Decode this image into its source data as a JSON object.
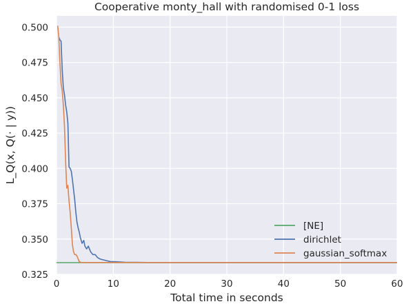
{
  "chart_data": {
    "type": "line",
    "title": "Cooperative monty_hall with randomised 0-1 loss",
    "xlabel": "Total time in seconds",
    "ylabel": "L_Q(x, Q(· | y))",
    "xlim": [
      0,
      60
    ],
    "ylim": [
      0.325,
      0.508
    ],
    "x_ticks": [
      0,
      10,
      20,
      30,
      40,
      50,
      60
    ],
    "y_ticks": [
      0.325,
      0.35,
      0.375,
      0.4,
      0.425,
      0.45,
      0.475,
      0.5
    ],
    "x_tick_labels": [
      "0",
      "10",
      "20",
      "30",
      "40",
      "50",
      "60"
    ],
    "y_tick_labels": [
      "0.325",
      "0.350",
      "0.375",
      "0.400",
      "0.425",
      "0.450",
      "0.475",
      "0.500"
    ],
    "grid": true,
    "legend_position": "bottom-right",
    "series": [
      {
        "name": "[NE]",
        "color": "#55a868",
        "x": [
          0,
          60
        ],
        "y": [
          0.3333,
          0.3333
        ]
      },
      {
        "name": "dirichlet",
        "color": "#4c72b0",
        "x": [
          0.4,
          0.6,
          0.8,
          1.0,
          1.2,
          1.4,
          1.6,
          1.8,
          2.0,
          2.2,
          2.4,
          2.6,
          2.8,
          3.0,
          3.2,
          3.4,
          3.6,
          3.8,
          4.0,
          4.2,
          4.5,
          4.8,
          5.0,
          5.3,
          5.6,
          6.0,
          6.4,
          6.8,
          7.2,
          7.6,
          8.0,
          8.5,
          9.0,
          9.5,
          10,
          11,
          12,
          14,
          16,
          20,
          30,
          40,
          50,
          60
        ],
        "y": [
          0.493,
          0.491,
          0.49,
          0.47,
          0.457,
          0.452,
          0.445,
          0.44,
          0.432,
          0.401,
          0.4,
          0.398,
          0.392,
          0.385,
          0.378,
          0.369,
          0.362,
          0.358,
          0.355,
          0.351,
          0.347,
          0.349,
          0.345,
          0.343,
          0.345,
          0.341,
          0.339,
          0.339,
          0.337,
          0.336,
          0.3355,
          0.335,
          0.3345,
          0.334,
          0.334,
          0.3338,
          0.3336,
          0.3335,
          0.3334,
          0.3334,
          0.3334,
          0.3334,
          0.3334,
          0.3334
        ]
      },
      {
        "name": "gaussian_softmax",
        "color": "#dd8452",
        "x": [
          0.2,
          0.4,
          0.6,
          0.8,
          1.0,
          1.2,
          1.4,
          1.6,
          1.8,
          2.0,
          2.2,
          2.4,
          2.6,
          2.8,
          3.0,
          3.2,
          3.4,
          3.6,
          3.8,
          4.0,
          4.2,
          4.5,
          5.0,
          6,
          8,
          10,
          20,
          40,
          60
        ],
        "y": [
          0.501,
          0.493,
          0.475,
          0.46,
          0.455,
          0.445,
          0.43,
          0.405,
          0.386,
          0.388,
          0.377,
          0.369,
          0.358,
          0.346,
          0.341,
          0.339,
          0.339,
          0.338,
          0.336,
          0.334,
          0.3336,
          0.3334,
          0.3334,
          0.3334,
          0.3334,
          0.3334,
          0.3334,
          0.3334,
          0.3334
        ]
      }
    ]
  }
}
